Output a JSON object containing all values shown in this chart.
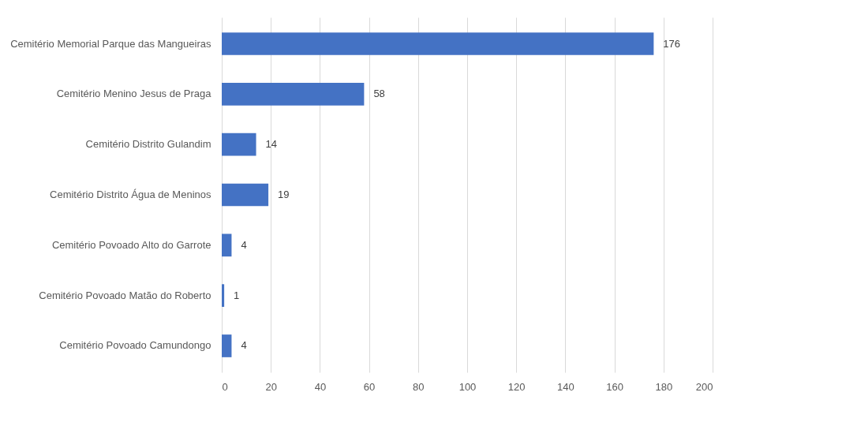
{
  "chart_data": {
    "type": "bar",
    "orientation": "horizontal",
    "categories": [
      "Cemitério Memorial Parque das Mangueiras",
      "Cemitério Menino Jesus de Praga",
      "Cemitério Distrito Gulandim",
      "Cemitério Distrito Água de Meninos",
      "Cemitério Povoado Alto do Garrote",
      "Cemitério Povoado Matão do Roberto",
      "Cemitério Povoado Camundongo"
    ],
    "values": [
      176,
      58,
      14,
      19,
      4,
      1,
      4
    ],
    "color": "#4472c4",
    "xlim": [
      0,
      200
    ],
    "xticks": [
      0,
      20,
      40,
      60,
      80,
      100,
      120,
      140,
      160,
      180,
      200
    ],
    "grid": "x",
    "data_labels": true
  }
}
